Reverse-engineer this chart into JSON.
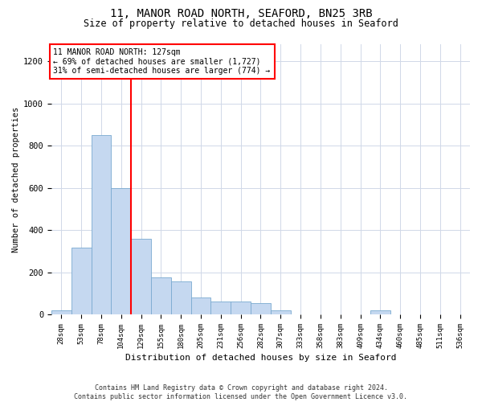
{
  "title_line1": "11, MANOR ROAD NORTH, SEAFORD, BN25 3RB",
  "title_line2": "Size of property relative to detached houses in Seaford",
  "xlabel": "Distribution of detached houses by size in Seaford",
  "ylabel": "Number of detached properties",
  "footnote": "Contains HM Land Registry data © Crown copyright and database right 2024.\nContains public sector information licensed under the Open Government Licence v3.0.",
  "annotation_line1": "11 MANOR ROAD NORTH: 127sqm",
  "annotation_line2": "← 69% of detached houses are smaller (1,727)",
  "annotation_line3": "31% of semi-detached houses are larger (774) →",
  "red_line_x": 3.5,
  "bar_color": "#c5d8f0",
  "bar_edge_color": "#7aaad0",
  "categories": [
    "28sqm",
    "53sqm",
    "78sqm",
    "104sqm",
    "129sqm",
    "155sqm",
    "180sqm",
    "205sqm",
    "231sqm",
    "256sqm",
    "282sqm",
    "307sqm",
    "333sqm",
    "358sqm",
    "383sqm",
    "409sqm",
    "434sqm",
    "460sqm",
    "485sqm",
    "511sqm",
    "536sqm"
  ],
  "values": [
    20,
    315,
    850,
    600,
    360,
    175,
    155,
    80,
    60,
    60,
    55,
    20,
    0,
    0,
    0,
    0,
    20,
    0,
    0,
    0,
    0
  ],
  "ylim": [
    0,
    1280
  ],
  "yticks": [
    0,
    200,
    400,
    600,
    800,
    1000,
    1200
  ],
  "background_color": "#ffffff",
  "grid_color": "#d0d8e8"
}
